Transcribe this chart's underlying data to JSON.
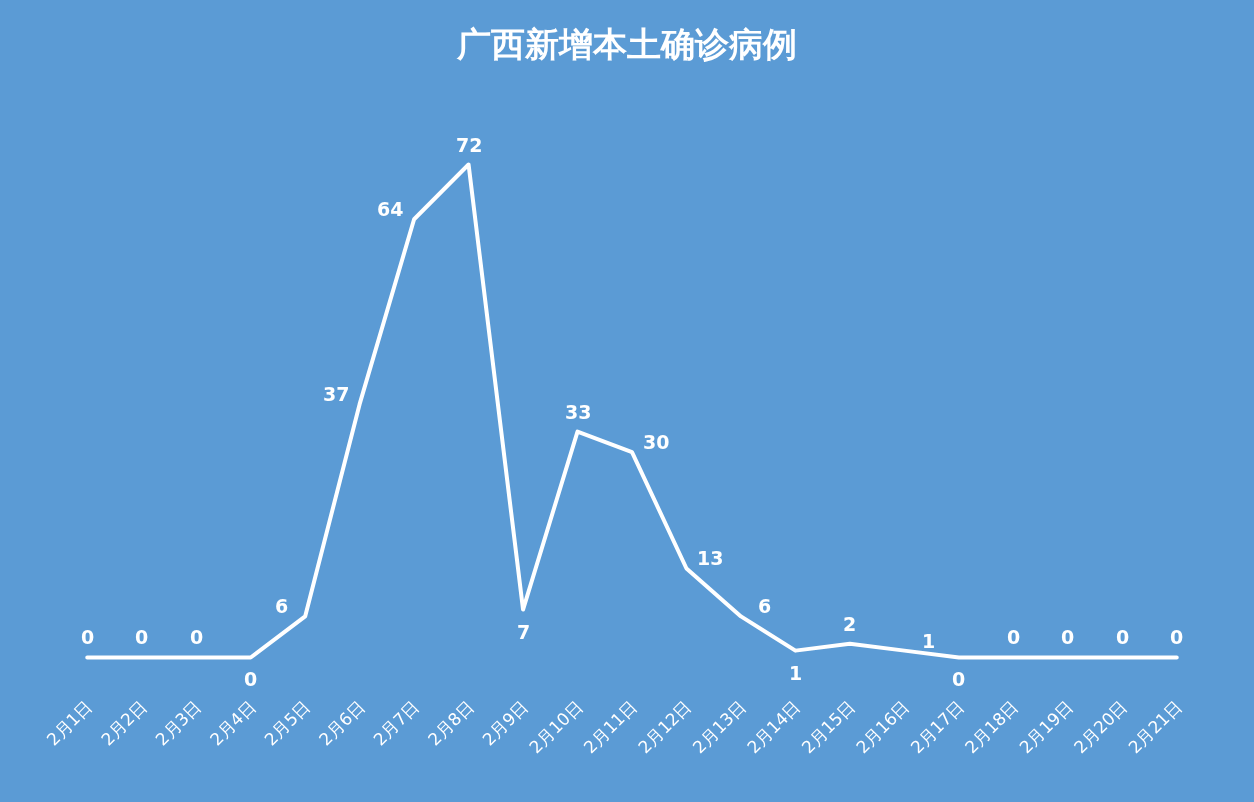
{
  "chart_data": {
    "type": "line",
    "title": "广西新增本土确诊病例",
    "categories": [
      "2月1日",
      "2月2日",
      "2月3日",
      "2月4日",
      "2月5日",
      "2月6日",
      "2月7日",
      "2月8日",
      "2月9日",
      "2月10日",
      "2月11日",
      "2月12日",
      "2月13日",
      "2月14日",
      "2月15日",
      "2月16日",
      "2月17日",
      "2月18日",
      "2月19日",
      "2月20日",
      "2月21日"
    ],
    "series": [
      {
        "color": "#ffffff",
        "values": [
          0,
          0,
          0,
          0,
          6,
          37,
          64,
          72,
          7,
          33,
          30,
          13,
          6,
          1,
          2,
          1,
          0,
          0,
          0,
          0,
          0
        ]
      }
    ],
    "data_labels": true,
    "grid": false,
    "marker": "none",
    "line_style": "solid"
  }
}
